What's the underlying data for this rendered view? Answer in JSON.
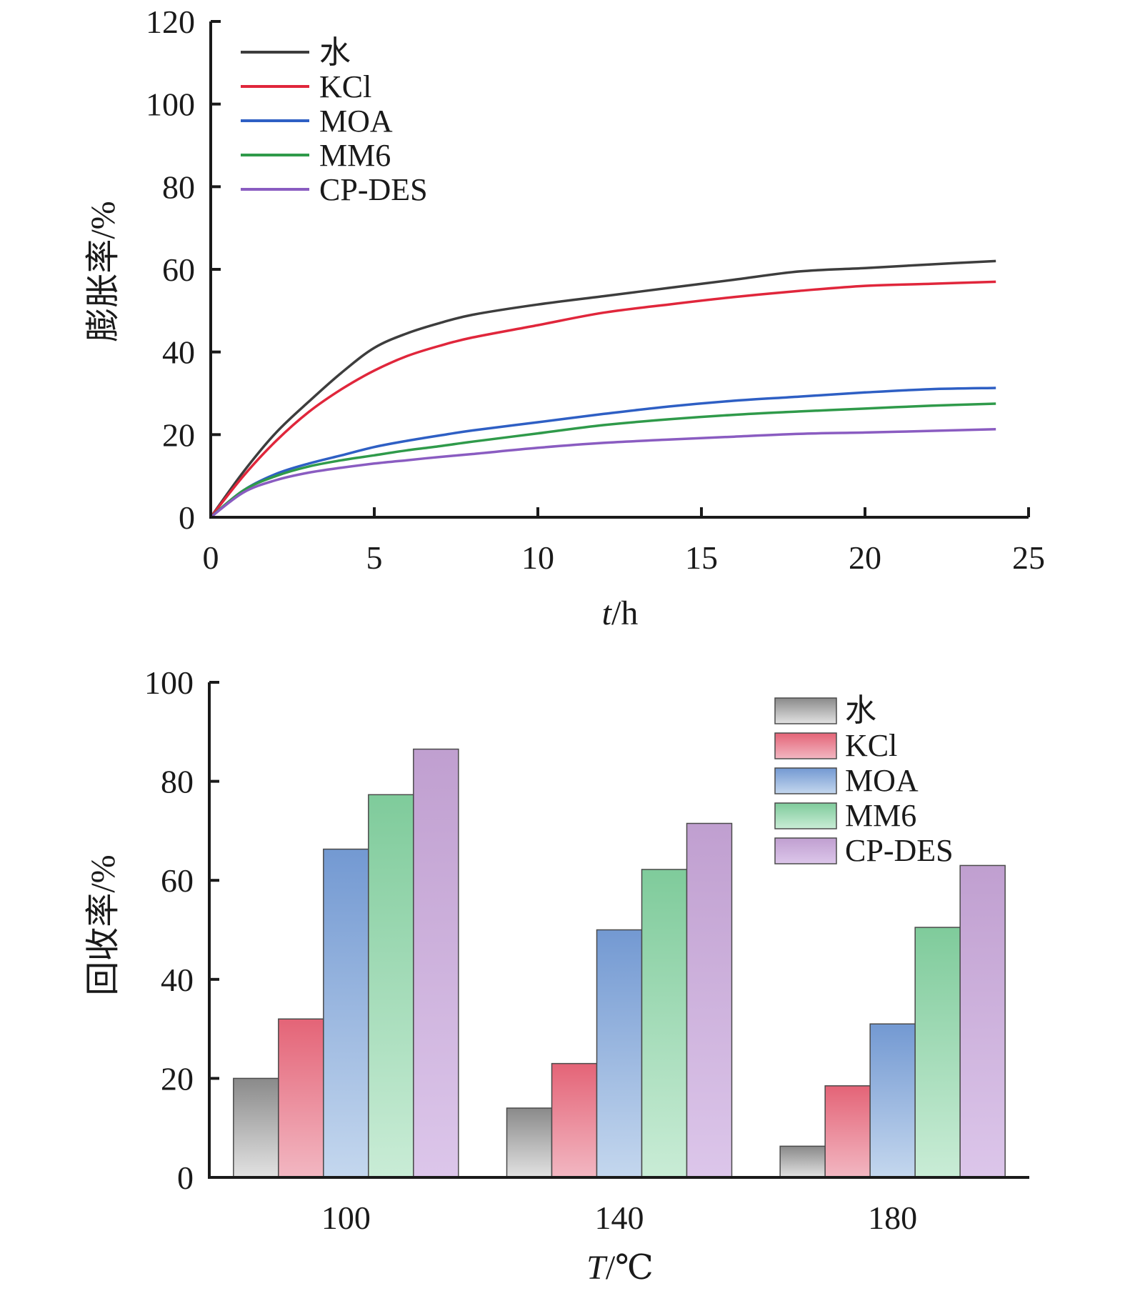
{
  "colors": {
    "axis": "#1a1a1a",
    "series_line": [
      "#3d3d3d",
      "#e0263b",
      "#2e5fc4",
      "#2f9a4a",
      "#8a5cc1"
    ],
    "bar_top": [
      "#8a8a8a",
      "#e46477",
      "#7399d2",
      "#7fcb9b",
      "#c09fd0"
    ],
    "bar_bottom": [
      "#e2e2e2",
      "#f2b7c2",
      "#c4d7ee",
      "#c9ecd6",
      "#dcc6ea"
    ]
  },
  "chart_data": [
    {
      "type": "line",
      "xlabel_italic": "t",
      "xlabel_unit": "/h",
      "ylabel": "膨胀率/%",
      "xlim": [
        0,
        25
      ],
      "ylim": [
        0,
        120
      ],
      "xticks": [
        "0",
        "5",
        "10",
        "15",
        "20",
        "25"
      ],
      "yticks": [
        "0",
        "20",
        "40",
        "60",
        "80",
        "100",
        "120"
      ],
      "grid": false,
      "legend_position": "top-left",
      "x": [
        0,
        1,
        2,
        3,
        4,
        5,
        6,
        7,
        8,
        10,
        12,
        14,
        16,
        18,
        20,
        22,
        24
      ],
      "series": [
        {
          "name": "水",
          "values": [
            0,
            11,
            20.5,
            28,
            35,
            41,
            44.5,
            47,
            49,
            51.5,
            53.5,
            55.5,
            57.5,
            59.5,
            60.3,
            61.2,
            62
          ]
        },
        {
          "name": "KCl",
          "values": [
            0,
            10,
            18.5,
            25.5,
            31,
            35.5,
            39,
            41.5,
            43.5,
            46.5,
            49.5,
            51.5,
            53.3,
            54.8,
            56,
            56.5,
            57
          ]
        },
        {
          "name": "MOA",
          "values": [
            0,
            6.5,
            10.5,
            13,
            15,
            17,
            18.5,
            19.8,
            21,
            23,
            25,
            26.8,
            28.2,
            29.2,
            30.2,
            31,
            31.3
          ]
        },
        {
          "name": "MM6",
          "values": [
            0,
            6.5,
            10,
            12.3,
            13.8,
            15,
            16.2,
            17.2,
            18.3,
            20.3,
            22.3,
            23.7,
            24.8,
            25.6,
            26.3,
            27,
            27.5
          ]
        },
        {
          "name": "CP-DES",
          "values": [
            0,
            6,
            9,
            10.8,
            12,
            13,
            13.8,
            14.6,
            15.3,
            16.8,
            18,
            18.8,
            19.5,
            20.2,
            20.5,
            20.9,
            21.3
          ]
        }
      ]
    },
    {
      "type": "bar",
      "xlabel_italic": "T",
      "xlabel_unit": "/℃",
      "ylabel": "回收率/%",
      "ylim": [
        0,
        100
      ],
      "yticks": [
        "0",
        "20",
        "40",
        "60",
        "80",
        "100"
      ],
      "grid": false,
      "legend_position": "top-right",
      "categories": [
        "100",
        "140",
        "180"
      ],
      "series": [
        {
          "name": "水",
          "values": [
            20,
            14,
            6.3
          ]
        },
        {
          "name": "KCl",
          "values": [
            32,
            23,
            18.5
          ]
        },
        {
          "name": "MOA",
          "values": [
            66.3,
            50,
            31
          ]
        },
        {
          "name": "MM6",
          "values": [
            77.3,
            62.2,
            50.5
          ]
        },
        {
          "name": "CP-DES",
          "values": [
            86.5,
            71.5,
            63
          ]
        }
      ]
    }
  ]
}
